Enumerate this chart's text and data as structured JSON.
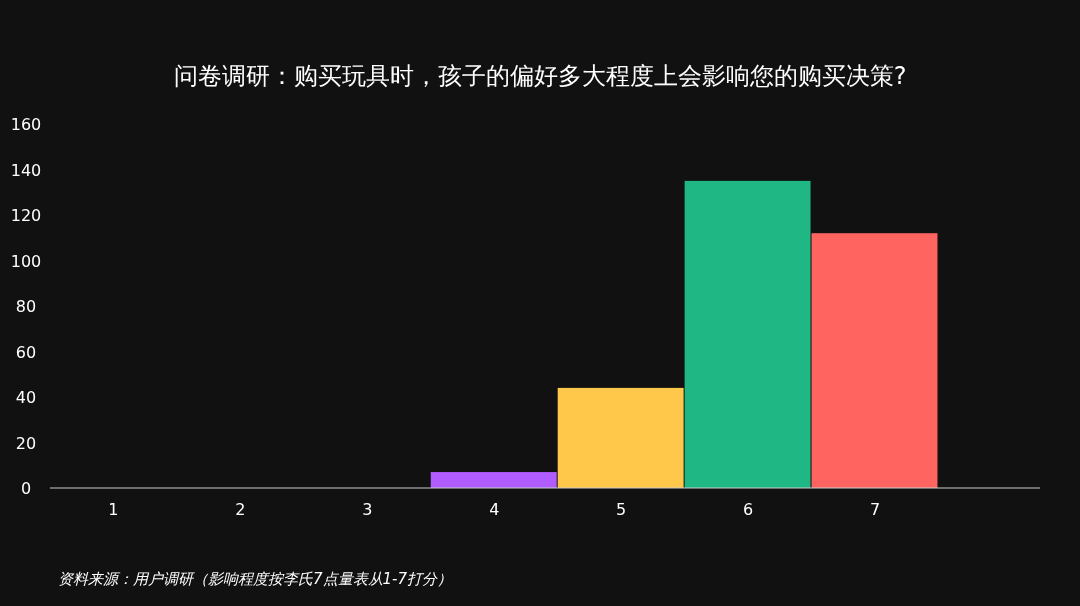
{
  "chart_data": {
    "type": "bar",
    "title": "问卷调研：购买玩具时，孩子的偏好多大程度上会影响您的购买决策?",
    "categories": [
      "1",
      "2",
      "3",
      "4",
      "5",
      "6",
      "7"
    ],
    "values": [
      0,
      0,
      0,
      7,
      44,
      135,
      112
    ],
    "colors": [
      "#b05cff",
      "#b05cff",
      "#b05cff",
      "#b05cff",
      "#ffc84a",
      "#1fb885",
      "#ff6461"
    ],
    "ylim": [
      0,
      160
    ],
    "yticks": [
      0,
      20,
      40,
      60,
      80,
      100,
      120,
      140,
      160
    ],
    "grid": false,
    "annotations": [
      "资料来源：用户调研（影响程度按李氏7点量表从1-7打分）"
    ]
  }
}
